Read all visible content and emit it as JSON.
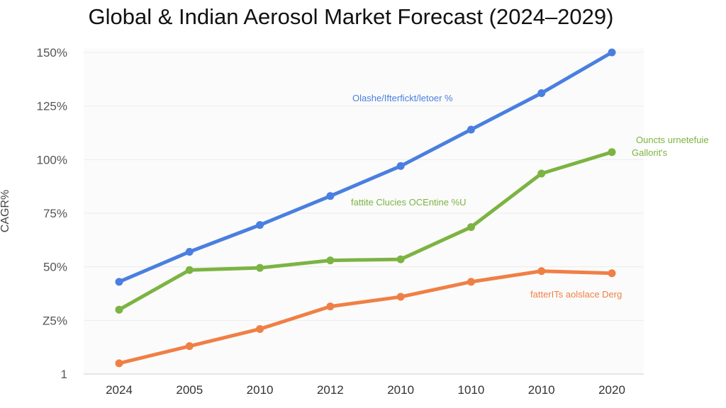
{
  "chart_data": {
    "type": "line",
    "title": "Global & Indian Aerosol Market Forecast (2024–2029)",
    "xlabel": "",
    "ylabel": "CAGR%",
    "categories": [
      "2024",
      "2005",
      "2010",
      "2012",
      "2010",
      "1010",
      "2010",
      "2020"
    ],
    "y_ticks": [
      {
        "label": "1",
        "value": 0
      },
      {
        "label": "Z5%",
        "value": 25
      },
      {
        "label": "50%",
        "value": 50
      },
      {
        "label": "75%",
        "value": 75
      },
      {
        "label": "100%",
        "value": 100
      },
      {
        "label": "125%",
        "value": 125
      },
      {
        "label": "150%",
        "value": 150
      }
    ],
    "ylim": [
      0,
      150
    ],
    "grid": true,
    "series": [
      {
        "name": "Olashe/Ifterfickt/letoer %",
        "color": "#4a7fe0",
        "values": [
          43,
          57,
          69.5,
          83,
          97,
          114,
          131,
          150
        ]
      },
      {
        "name": "Ouncts urnetefuie Gallorit's",
        "color": "#7cb342",
        "values": [
          30,
          48.5,
          49.5,
          53,
          53.5,
          68.5,
          93.5,
          103.5
        ]
      },
      {
        "name": "fatterITs aolslace Derg",
        "color": "#f07f45",
        "values": [
          5,
          13,
          21,
          31.5,
          36,
          43,
          48,
          47
        ]
      }
    ],
    "annotations": [
      {
        "text": "Olashe/Ifterfickt/letoer %",
        "series": 0
      },
      {
        "text": "Ouncts urnetefuie",
        "series": 1
      },
      {
        "text": "Gallorit's",
        "series": 1
      },
      {
        "text": "fattite Clucies OCEntine %U",
        "series": 1
      },
      {
        "text": "fatterITs aolslace Derg",
        "series": 2
      }
    ]
  }
}
